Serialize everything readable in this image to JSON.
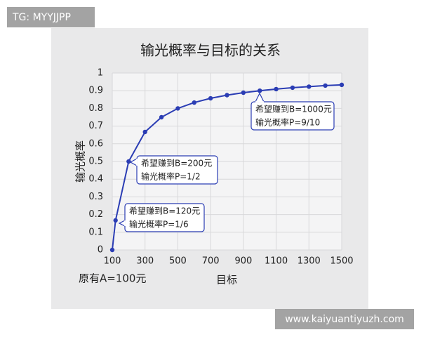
{
  "watermark_top": "TG: MYYJJPP",
  "watermark_bottom": "www.kaiyuantiyuzh.com",
  "chart_data": {
    "type": "line",
    "title": "输光概率与目标的关系",
    "x_label": "目标",
    "y_label": "输光概率",
    "note": "原有A=100元",
    "x": [
      100,
      120,
      200,
      300,
      400,
      500,
      600,
      700,
      800,
      900,
      1000,
      1100,
      1200,
      1300,
      1400,
      1500
    ],
    "series": [
      {
        "color": "#2b3db4",
        "values": [
          0,
          0.167,
          0.5,
          0.667,
          0.75,
          0.8,
          0.833,
          0.857,
          0.875,
          0.889,
          0.9,
          0.909,
          0.917,
          0.923,
          0.929,
          0.933
        ]
      }
    ],
    "xlim": [
      100,
      1500
    ],
    "xticks": [
      100,
      300,
      500,
      700,
      900,
      1100,
      1300,
      1500
    ],
    "ylim": [
      0,
      1
    ],
    "yticks": [
      0,
      0.1,
      0.2,
      0.3,
      0.4,
      0.5,
      0.6,
      0.7,
      0.8,
      0.9,
      1
    ],
    "grid": true,
    "annotations": [
      {
        "lines": [
          "希望赚到B=1000元",
          "输光概率P=9/10"
        ]
      },
      {
        "lines": [
          "希望赚到B=200元",
          "输光概率P=1/2"
        ]
      },
      {
        "lines": [
          "希望赚到B=120元",
          "输光概率P=1/6"
        ]
      }
    ]
  }
}
